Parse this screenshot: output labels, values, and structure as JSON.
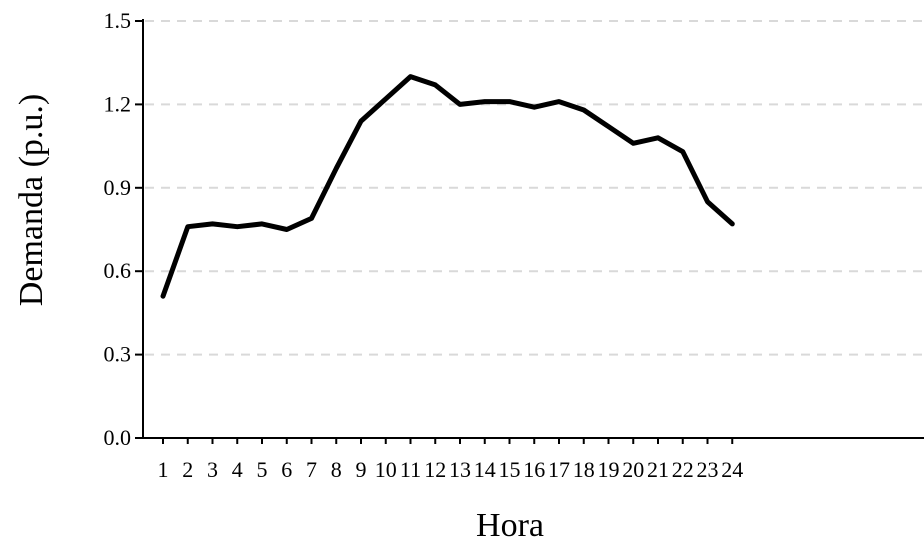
{
  "chart_data": {
    "type": "line",
    "title": "",
    "xlabel": "Hora",
    "ylabel": "Demanda (p.u.)",
    "categories": [
      "1",
      "2",
      "3",
      "4",
      "5",
      "6",
      "7",
      "8",
      "9",
      "10",
      "11",
      "12",
      "13",
      "14",
      "15",
      "16",
      "17",
      "18",
      "19",
      "20",
      "21",
      "22",
      "23",
      "24"
    ],
    "series": [
      {
        "values": [
          0.51,
          0.76,
          0.77,
          0.76,
          0.77,
          0.75,
          0.79,
          0.97,
          1.14,
          1.22,
          1.3,
          1.27,
          1.2,
          1.21,
          1.21,
          1.19,
          1.21,
          1.18,
          1.12,
          1.06,
          1.08,
          1.03,
          0.85,
          0.77
        ]
      }
    ],
    "ylim": [
      0.0,
      1.5
    ],
    "yticks": [
      "0.0",
      "0.3",
      "0.6",
      "0.9",
      "1.2",
      "1.5"
    ],
    "grid": "horizontal-dashed",
    "line_color": "#000000",
    "grid_color": "#d9d9d9"
  }
}
